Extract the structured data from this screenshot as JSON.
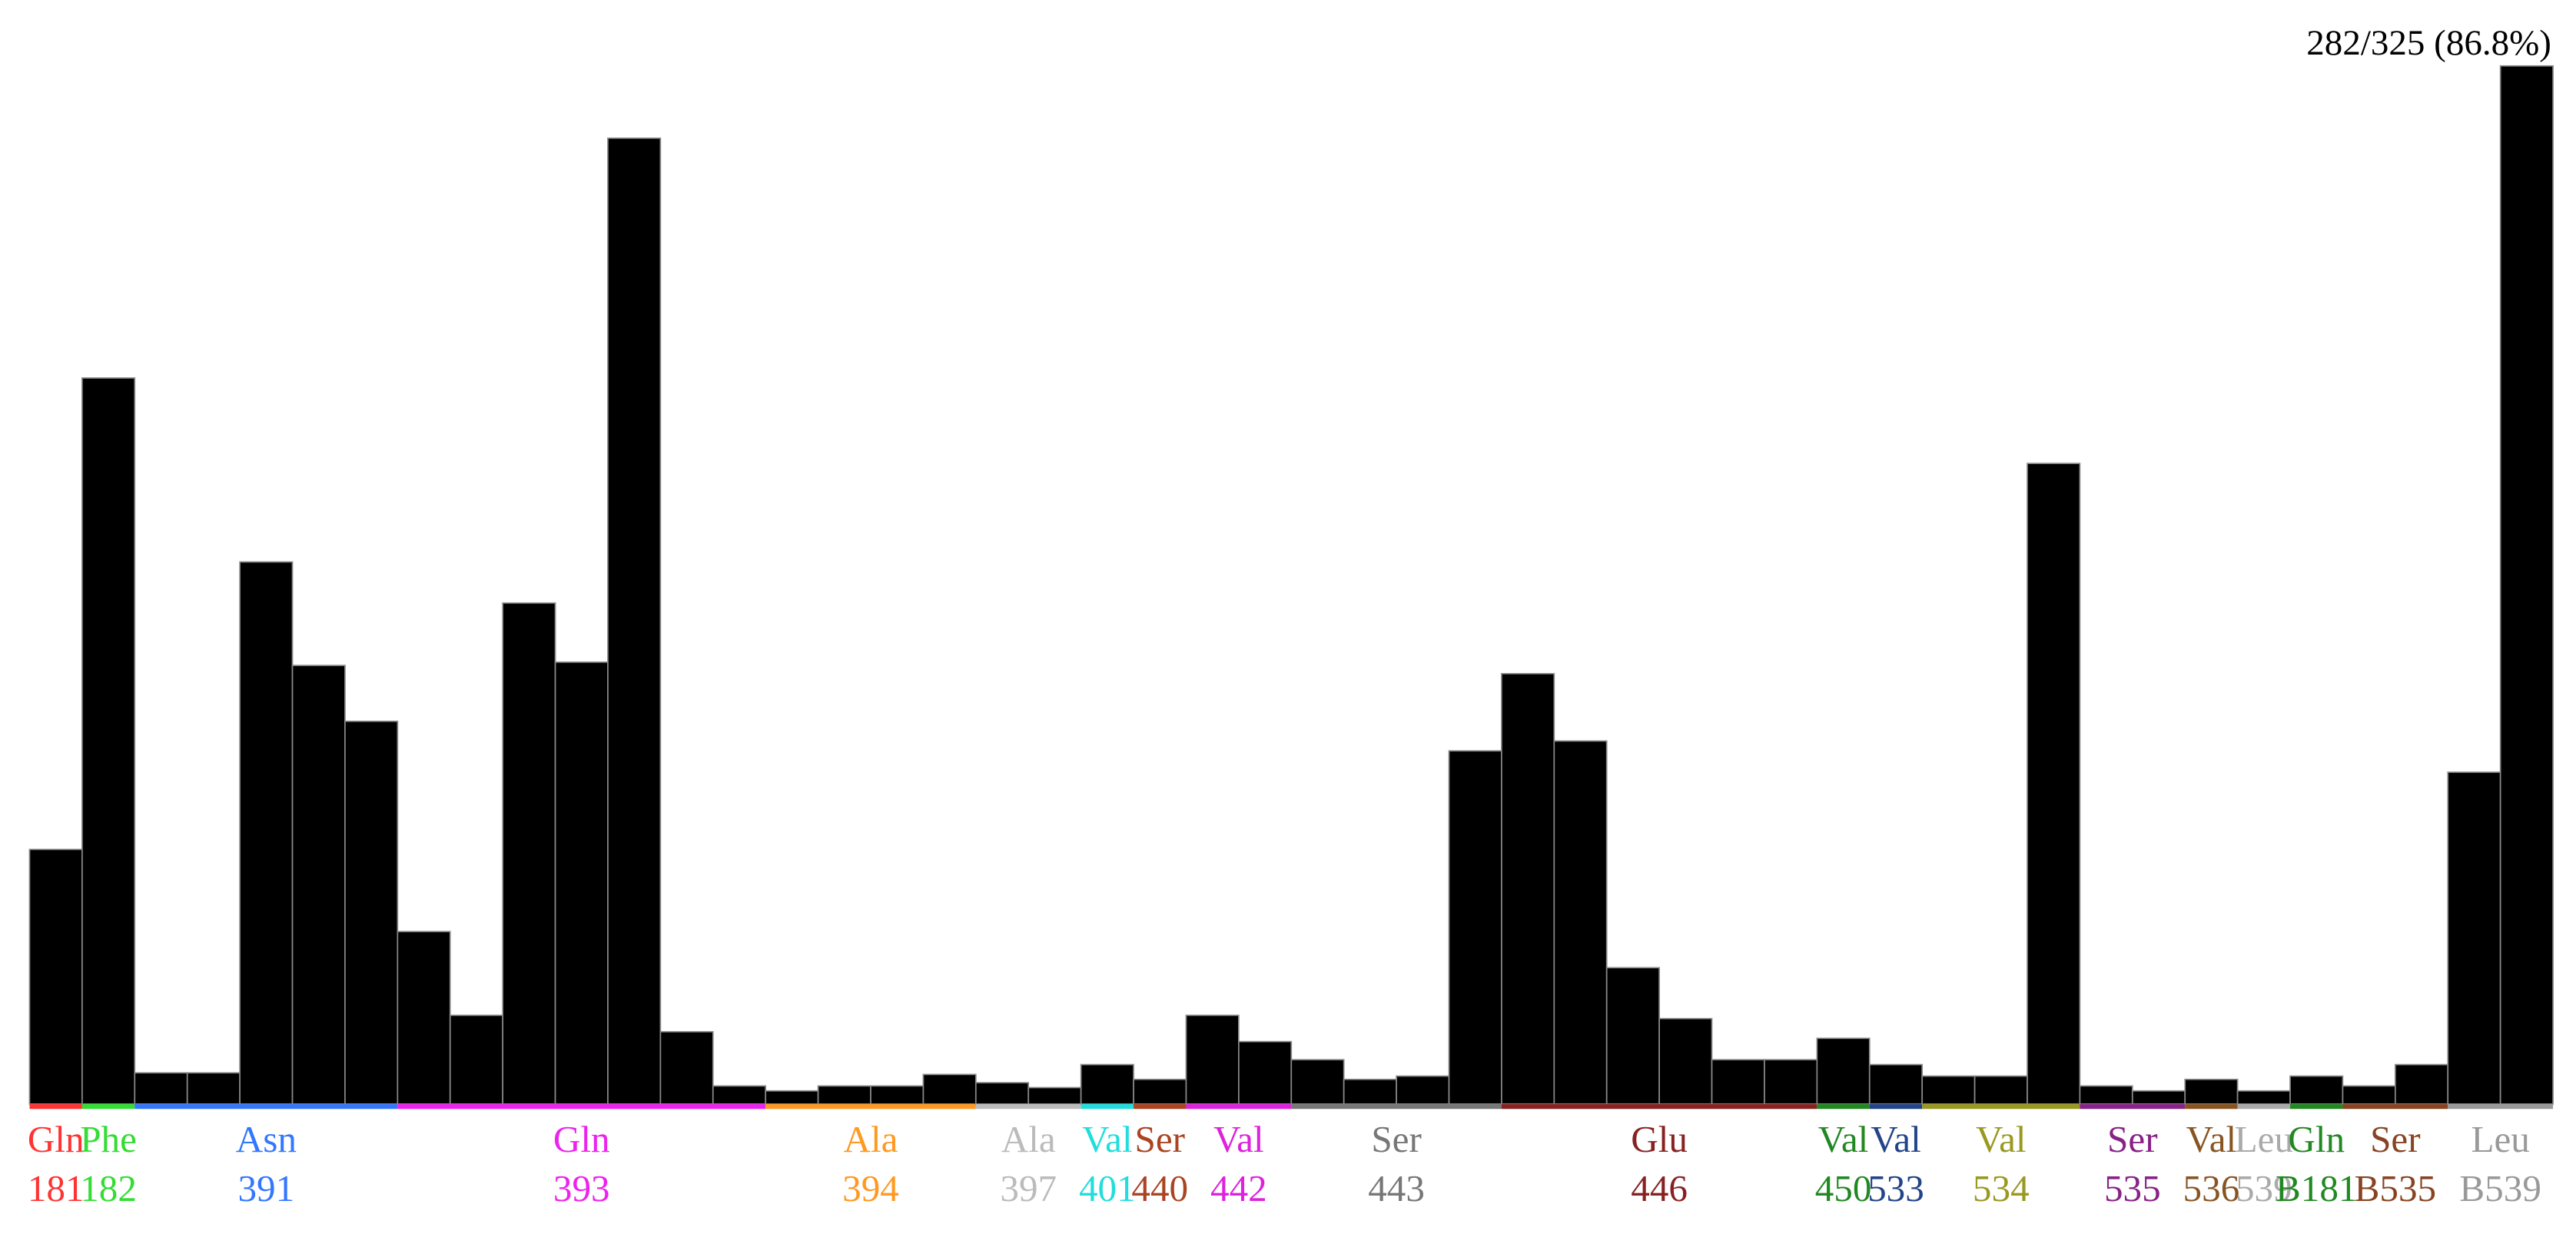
{
  "chart_data": {
    "type": "bar",
    "annotation": "282/325 (86.8%)",
    "groups": [
      {
        "name": "Gln",
        "number": "181",
        "color": "#ff3333",
        "values": [
          155
        ]
      },
      {
        "name": "Phe",
        "number": "182",
        "color": "#33dd33",
        "values": [
          442
        ]
      },
      {
        "name": "Asn",
        "number": "391",
        "color": "#3377ff",
        "values": [
          19,
          19,
          330,
          267,
          233
        ]
      },
      {
        "name": "Gln",
        "number": "393",
        "color": "#ee22ee",
        "values": [
          105,
          54,
          305,
          269,
          588,
          44,
          11
        ]
      },
      {
        "name": "Ala",
        "number": "394",
        "color": "#ff9922",
        "values": [
          8,
          11,
          11,
          18
        ]
      },
      {
        "name": "Ala",
        "number": "397",
        "color": "#bbbbbb",
        "values": [
          13,
          10
        ]
      },
      {
        "name": "Val",
        "number": "401",
        "color": "#22dddd",
        "values": [
          24
        ]
      },
      {
        "name": "Ser",
        "number": "440",
        "color": "#aa4422",
        "values": [
          15
        ]
      },
      {
        "name": "Val",
        "number": "442",
        "color": "#dd22dd",
        "values": [
          54,
          38
        ]
      },
      {
        "name": "Ser",
        "number": "443",
        "color": "#777777",
        "values": [
          27,
          15,
          17,
          215
        ]
      },
      {
        "name": "Glu",
        "number": "446",
        "color": "#882222",
        "values": [
          262,
          221,
          83,
          52,
          27,
          27
        ]
      },
      {
        "name": "Val",
        "number": "450",
        "color": "#228822",
        "values": [
          40
        ]
      },
      {
        "name": "Val",
        "number": "533",
        "color": "#224488",
        "values": [
          24
        ]
      },
      {
        "name": "Val",
        "number": "534",
        "color": "#999922",
        "values": [
          17,
          17,
          390
        ]
      },
      {
        "name": "Ser",
        "number": "535",
        "color": "#882288",
        "values": [
          11,
          8
        ]
      },
      {
        "name": "Val",
        "number": "536",
        "color": "#885522",
        "values": [
          15
        ]
      },
      {
        "name": "Leu",
        "number": "539",
        "color": "#aaaaaa",
        "values": [
          8
        ]
      },
      {
        "name": "Gln",
        "number": "B181",
        "color": "#228822",
        "values": [
          17
        ]
      },
      {
        "name": "Ser",
        "number": "B535",
        "color": "#884422",
        "values": [
          11,
          24
        ]
      },
      {
        "name": "Leu",
        "number": "B539",
        "color": "#999999",
        "values": [
          202,
          632
        ]
      }
    ]
  }
}
